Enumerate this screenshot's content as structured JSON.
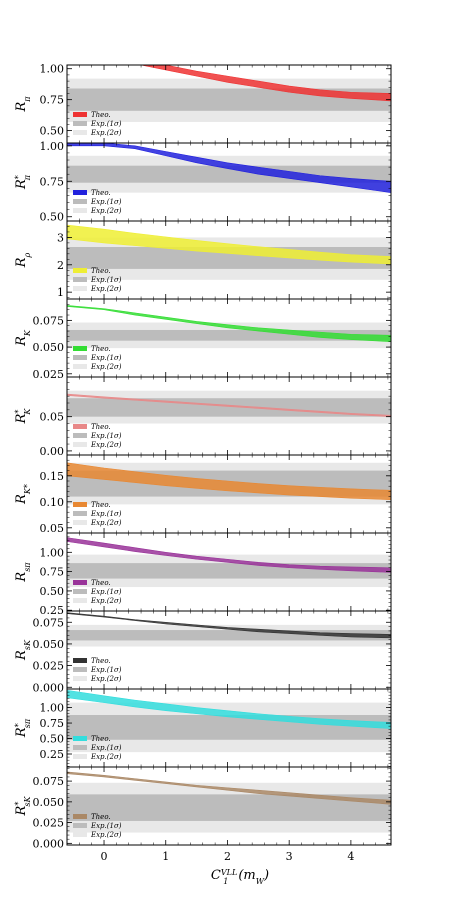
{
  "chart_data": {
    "type": "area",
    "xlabel": "C_1^{VLL}(m_W)",
    "x_ticks": [
      "0",
      "1",
      "2",
      "3",
      "4"
    ],
    "xlim": [
      -0.6,
      4.65
    ],
    "legend": [
      "Theo.",
      "Exp.(1σ)",
      "Exp.(2σ)"
    ],
    "colors": {
      "exp1": "#bcbcbc",
      "exp2": "#e8e8e8",
      "axis": "#000000"
    },
    "panels": [
      {
        "ylabel": "R_π",
        "ylim": [
          0.4,
          1.03
        ],
        "yticks": [
          0.5,
          0.75,
          1.0
        ],
        "ytick_labels": [
          "0.50",
          "0.75",
          "1.00"
        ],
        "exp1": [
          0.66,
          0.84
        ],
        "exp2": [
          0.57,
          0.92
        ],
        "color": "#ee3333",
        "theory": {
          "x": [
            -0.6,
            0,
            0.5,
            1,
            1.5,
            2,
            2.5,
            3,
            3.5,
            4,
            4.65
          ],
          "low": [
            1.16,
            1.09,
            1.04,
            0.99,
            0.94,
            0.89,
            0.85,
            0.81,
            0.78,
            0.76,
            0.74
          ],
          "high": [
            1.17,
            1.11,
            1.07,
            1.03,
            0.98,
            0.94,
            0.9,
            0.86,
            0.83,
            0.81,
            0.8
          ]
        }
      },
      {
        "ylabel": "R*_π",
        "ylim": [
          0.47,
          1.02
        ],
        "yticks": [
          0.5,
          0.75,
          1.0
        ],
        "ytick_labels": [
          "0.50",
          "0.75",
          "1.00"
        ],
        "exp1": [
          0.74,
          0.86
        ],
        "exp2": [
          0.67,
          0.93
        ],
        "color": "#2222dd",
        "theory": {
          "x": [
            -0.6,
            0,
            0.5,
            1,
            1.5,
            2,
            2.5,
            3,
            3.5,
            4,
            4.65
          ],
          "low": [
            1.0,
            1.0,
            0.98,
            0.93,
            0.88,
            0.84,
            0.8,
            0.77,
            0.74,
            0.71,
            0.67
          ],
          "high": [
            1.02,
            1.02,
            1.0,
            0.96,
            0.92,
            0.88,
            0.85,
            0.82,
            0.79,
            0.77,
            0.75
          ]
        }
      },
      {
        "ylabel": "R_ρ",
        "ylim": [
          0.75,
          3.6
        ],
        "yticks": [
          1,
          2,
          3
        ],
        "ytick_labels": [
          "1",
          "2",
          "3"
        ],
        "exp1": [
          1.85,
          2.65
        ],
        "exp2": [
          1.45,
          3.0
        ],
        "color": "#eeee33",
        "theory": {
          "x": [
            -0.6,
            0,
            0.5,
            1,
            1.5,
            2,
            2.5,
            3,
            3.5,
            4,
            4.65
          ],
          "low": [
            2.95,
            2.8,
            2.7,
            2.6,
            2.5,
            2.42,
            2.33,
            2.25,
            2.17,
            2.1,
            2.03
          ],
          "high": [
            3.45,
            3.3,
            3.15,
            3.02,
            2.89,
            2.77,
            2.66,
            2.56,
            2.46,
            2.37,
            2.3
          ]
        }
      },
      {
        "ylabel": "R_K",
        "ylim": [
          0.022,
          0.095
        ],
        "yticks": [
          0.025,
          0.05,
          0.075
        ],
        "ytick_labels": [
          "0.025",
          "0.050",
          "0.075"
        ],
        "exp1": [
          0.056,
          0.066
        ],
        "exp2": [
          0.049,
          0.073
        ],
        "color": "#33dd33",
        "theory": {
          "x": [
            -0.6,
            0,
            0.5,
            1,
            1.5,
            2,
            2.5,
            3,
            3.5,
            4,
            4.65
          ],
          "low": [
            0.088,
            0.085,
            0.08,
            0.076,
            0.072,
            0.068,
            0.065,
            0.062,
            0.059,
            0.057,
            0.055
          ],
          "high": [
            0.089,
            0.086,
            0.082,
            0.078,
            0.074,
            0.071,
            0.068,
            0.066,
            0.064,
            0.062,
            0.061
          ]
        }
      },
      {
        "ylabel": "R*_K",
        "ylim": [
          -0.006,
          0.108
        ],
        "yticks": [
          0.0,
          0.05
        ],
        "ytick_labels": [
          "0.00",
          "0.05"
        ],
        "exp1": [
          0.05,
          0.077
        ],
        "exp2": [
          0.04,
          0.088
        ],
        "color": "#e88888",
        "theory": {
          "x": [
            -0.6,
            0,
            0.5,
            1,
            1.5,
            2,
            2.5,
            3,
            3.5,
            4,
            4.65
          ],
          "low": [
            0.081,
            0.077,
            0.074,
            0.071,
            0.068,
            0.065,
            0.062,
            0.059,
            0.056,
            0.053,
            0.05
          ],
          "high": [
            0.083,
            0.079,
            0.076,
            0.073,
            0.07,
            0.067,
            0.064,
            0.061,
            0.058,
            0.055,
            0.052
          ]
        }
      },
      {
        "ylabel": "R_{K*}",
        "ylim": [
          0.04,
          0.19
        ],
        "yticks": [
          0.05,
          0.1,
          0.15
        ],
        "ytick_labels": [
          "0.05",
          "0.10",
          "0.15"
        ],
        "exp1": [
          0.11,
          0.16
        ],
        "exp2": [
          0.095,
          0.175
        ],
        "color": "#e88833",
        "theory": {
          "x": [
            -0.6,
            0,
            0.5,
            1,
            1.5,
            2,
            2.5,
            3,
            3.5,
            4,
            4.65
          ],
          "low": [
            0.15,
            0.143,
            0.137,
            0.131,
            0.126,
            0.121,
            0.117,
            0.113,
            0.11,
            0.107,
            0.104
          ],
          "high": [
            0.175,
            0.165,
            0.158,
            0.151,
            0.145,
            0.14,
            0.135,
            0.131,
            0.128,
            0.125,
            0.122
          ]
        }
      },
      {
        "ylabel": "R_{sπ}",
        "ylim": [
          0.24,
          1.25
        ],
        "yticks": [
          0.25,
          0.5,
          0.75,
          1.0
        ],
        "ytick_labels": [
          "0.25",
          "0.50",
          "0.75",
          "1.00"
        ],
        "exp1": [
          0.66,
          0.86
        ],
        "exp2": [
          0.55,
          0.97
        ],
        "color": "#993399",
        "theory": {
          "x": [
            -0.6,
            0,
            0.5,
            1,
            1.5,
            2,
            2.5,
            3,
            3.5,
            4,
            4.65
          ],
          "low": [
            1.14,
            1.07,
            1.01,
            0.96,
            0.91,
            0.87,
            0.83,
            0.8,
            0.78,
            0.76,
            0.74
          ],
          "high": [
            1.19,
            1.12,
            1.06,
            1.0,
            0.95,
            0.91,
            0.87,
            0.84,
            0.82,
            0.81,
            0.8
          ]
        }
      },
      {
        "ylabel": "R_{sK}",
        "ylim": [
          -0.002,
          0.088
        ],
        "yticks": [
          0.0,
          0.025,
          0.05,
          0.075
        ],
        "ytick_labels": [
          "0.000",
          "0.025",
          "0.050",
          "0.075"
        ],
        "exp1": [
          0.054,
          0.066
        ],
        "exp2": [
          0.047,
          0.072
        ],
        "color": "#333333",
        "theory": {
          "x": [
            -0.6,
            0,
            0.5,
            1,
            1.5,
            2,
            2.5,
            3,
            3.5,
            4,
            4.65
          ],
          "low": [
            0.085,
            0.081,
            0.077,
            0.073,
            0.07,
            0.067,
            0.064,
            0.062,
            0.06,
            0.058,
            0.057
          ],
          "high": [
            0.086,
            0.082,
            0.078,
            0.075,
            0.072,
            0.069,
            0.067,
            0.065,
            0.063,
            0.062,
            0.061
          ]
        }
      },
      {
        "ylabel": "R*_{sπ}",
        "ylim": [
          0.04,
          1.3
        ],
        "yticks": [
          0.25,
          0.5,
          0.75,
          1.0
        ],
        "ytick_labels": [
          "0.25",
          "0.50",
          "0.75",
          "1.00"
        ],
        "exp1": [
          0.48,
          0.88
        ],
        "exp2": [
          0.28,
          1.08
        ],
        "color": "#33dddd",
        "theory": {
          "x": [
            -0.6,
            0,
            0.5,
            1,
            1.5,
            2,
            2.5,
            3,
            3.5,
            4,
            4.65
          ],
          "low": [
            1.16,
            1.08,
            1.01,
            0.95,
            0.9,
            0.85,
            0.81,
            0.77,
            0.73,
            0.7,
            0.66
          ],
          "high": [
            1.28,
            1.19,
            1.12,
            1.06,
            1.0,
            0.95,
            0.9,
            0.86,
            0.82,
            0.79,
            0.76
          ]
        }
      },
      {
        "ylabel": "R*_{sK}",
        "ylim": [
          -0.002,
          0.092
        ],
        "yticks": [
          0.0,
          0.025,
          0.05,
          0.075
        ],
        "ytick_labels": [
          "0.000",
          "0.025",
          "0.050",
          "0.075"
        ],
        "exp1": [
          0.027,
          0.059
        ],
        "exp2": [
          0.013,
          0.073
        ],
        "color": "#aa8866",
        "theory": {
          "x": [
            -0.6,
            0,
            0.5,
            1,
            1.5,
            2,
            2.5,
            3,
            3.5,
            4,
            4.65
          ],
          "low": [
            0.084,
            0.08,
            0.076,
            0.072,
            0.068,
            0.064,
            0.06,
            0.057,
            0.054,
            0.051,
            0.047
          ],
          "high": [
            0.086,
            0.082,
            0.078,
            0.074,
            0.07,
            0.067,
            0.064,
            0.061,
            0.058,
            0.055,
            0.052
          ]
        }
      }
    ]
  }
}
